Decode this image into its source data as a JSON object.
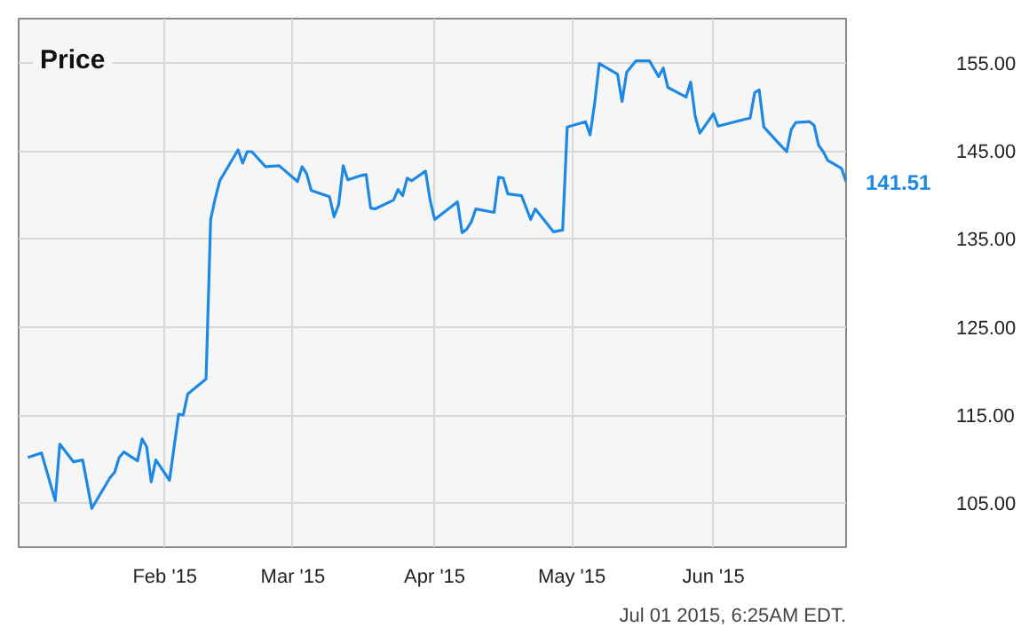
{
  "chart_data": {
    "type": "line",
    "title": "Price",
    "annotations": [
      "Jul 01 2015, 6:25AM EDT."
    ],
    "x": [
      "2015-01-02",
      "2015-01-05",
      "2015-01-08",
      "2015-01-09",
      "2015-01-12",
      "2015-01-14",
      "2015-01-16",
      "2015-01-20",
      "2015-01-21",
      "2015-01-22",
      "2015-01-23",
      "2015-01-26",
      "2015-01-27",
      "2015-01-28",
      "2015-01-29",
      "2015-01-30",
      "2015-02-02",
      "2015-02-04",
      "2015-02-05",
      "2015-02-06",
      "2015-02-10",
      "2015-02-11",
      "2015-02-12",
      "2015-02-13",
      "2015-02-17",
      "2015-02-18",
      "2015-02-19",
      "2015-02-20",
      "2015-02-23",
      "2015-02-26",
      "2015-03-02",
      "2015-03-03",
      "2015-03-04",
      "2015-03-05",
      "2015-03-09",
      "2015-03-10",
      "2015-03-11",
      "2015-03-12",
      "2015-03-13",
      "2015-03-16",
      "2015-03-17",
      "2015-03-18",
      "2015-03-19",
      "2015-03-23",
      "2015-03-24",
      "2015-03-25",
      "2015-03-26",
      "2015-03-27",
      "2015-03-30",
      "2015-03-31",
      "2015-04-01",
      "2015-04-06",
      "2015-04-07",
      "2015-04-08",
      "2015-04-09",
      "2015-04-10",
      "2015-04-14",
      "2015-04-15",
      "2015-04-16",
      "2015-04-17",
      "2015-04-20",
      "2015-04-22",
      "2015-04-23",
      "2015-04-27",
      "2015-04-29",
      "2015-04-30",
      "2015-05-04",
      "2015-05-05",
      "2015-05-06",
      "2015-05-07",
      "2015-05-11",
      "2015-05-12",
      "2015-05-13",
      "2015-05-15",
      "2015-05-18",
      "2015-05-20",
      "2015-05-21",
      "2015-05-22",
      "2015-05-26",
      "2015-05-27",
      "2015-05-28",
      "2015-05-29",
      "2015-06-01",
      "2015-06-02",
      "2015-06-08",
      "2015-06-09",
      "2015-06-10",
      "2015-06-11",
      "2015-06-12",
      "2015-06-15",
      "2015-06-17",
      "2015-06-18",
      "2015-06-19",
      "2015-06-22",
      "2015-06-23",
      "2015-06-24",
      "2015-06-25",
      "2015-06-26",
      "2015-06-29",
      "2015-06-30"
    ],
    "series": [
      {
        "color": "#1e88e5",
        "values": [
          110.2,
          110.7,
          105.3,
          111.7,
          109.7,
          109.9,
          104.4,
          107.9,
          108.5,
          110.2,
          110.8,
          109.8,
          112.3,
          111.4,
          107.4,
          109.9,
          107.6,
          115.1,
          115.0,
          117.4,
          119.1,
          137.2,
          139.6,
          141.6,
          145.1,
          143.6,
          144.9,
          144.9,
          143.2,
          143.3,
          141.5,
          143.2,
          142.4,
          140.5,
          139.8,
          137.5,
          138.9,
          143.3,
          141.7,
          142.2,
          142.3,
          138.5,
          138.4,
          139.4,
          140.6,
          139.9,
          141.9,
          141.6,
          142.7,
          139.4,
          137.2,
          139.2,
          135.7,
          136.1,
          136.9,
          138.4,
          138.0,
          142.0,
          141.9,
          140.1,
          139.9,
          137.2,
          138.4,
          135.8,
          136.0,
          147.7,
          148.3,
          146.8,
          150.4,
          154.9,
          153.7,
          150.6,
          153.9,
          155.2,
          155.2,
          153.4,
          154.4,
          152.2,
          151.1,
          152.8,
          148.9,
          147.0,
          149.2,
          147.8,
          148.6,
          148.7,
          151.6,
          151.9,
          147.7,
          146.0,
          144.9,
          147.4,
          148.2,
          148.3,
          147.9,
          145.6,
          144.9,
          143.9,
          143.0,
          141.51
        ],
        "value_labels": [
          null,
          null,
          null,
          null,
          null,
          null,
          null,
          null,
          null,
          null,
          null,
          null,
          null,
          null,
          null,
          null,
          null,
          null,
          null,
          null,
          null,
          null,
          null,
          null,
          null,
          null,
          null,
          null,
          null,
          null,
          null,
          null,
          null,
          null,
          null,
          null,
          null,
          null,
          null,
          null,
          null,
          null,
          null,
          null,
          null,
          null,
          null,
          null,
          null,
          null,
          null,
          null,
          null,
          null,
          null,
          null,
          null,
          null,
          null,
          null,
          null,
          null,
          null,
          null,
          null,
          null,
          null,
          null,
          null,
          null,
          null,
          null,
          null,
          null,
          null,
          null,
          null,
          null,
          null,
          null,
          null,
          null,
          null,
          null,
          null,
          null,
          null,
          null,
          null,
          null,
          null,
          null,
          null,
          null,
          null,
          null,
          null,
          null,
          null,
          "141.51"
        ]
      }
    ],
    "xlim": [
      "2014-12-31",
      "2015-06-30"
    ],
    "xticks": [
      {
        "value": "2015-02-01",
        "label": "Feb '15"
      },
      {
        "value": "2015-03-01",
        "label": "Mar '15"
      },
      {
        "value": "2015-04-01",
        "label": "Apr '15"
      },
      {
        "value": "2015-05-01",
        "label": "May '15"
      },
      {
        "value": "2015-06-01",
        "label": "Jun '15"
      }
    ],
    "ylim": [
      100,
      160
    ],
    "yticks": [
      {
        "value": 105,
        "label": "105.00"
      },
      {
        "value": 115,
        "label": "115.00"
      },
      {
        "value": 125,
        "label": "125.00"
      },
      {
        "value": 135,
        "label": "135.00"
      },
      {
        "value": 145,
        "label": "145.00"
      },
      {
        "value": 155,
        "label": "155.00"
      }
    ],
    "grid": true,
    "marker": "none",
    "line_style": "solid"
  }
}
